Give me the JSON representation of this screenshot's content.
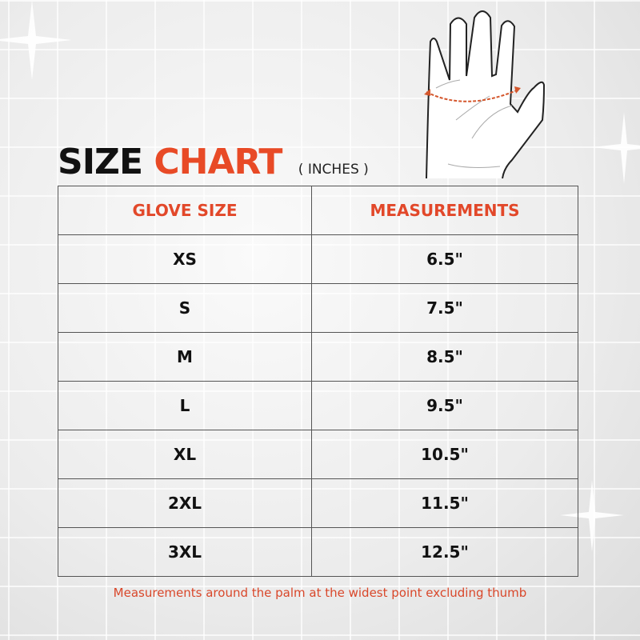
{
  "title": {
    "word1": "SIZE",
    "word2": "CHART",
    "unit": "( INCHES )"
  },
  "table": {
    "headers": [
      "GLOVE SIZE",
      "MEASUREMENTS"
    ],
    "rows": [
      [
        "XS",
        "6.5\""
      ],
      [
        "S",
        "7.5\""
      ],
      [
        "M",
        "8.5\""
      ],
      [
        "L",
        "9.5\""
      ],
      [
        "XL",
        "10.5\""
      ],
      [
        "2XL",
        "11.5\""
      ],
      [
        "3XL",
        "12.5\""
      ]
    ]
  },
  "note": "Measurements around the palm at the widest point excluding thumb",
  "colors": {
    "accent": "#e84a26",
    "text": "#111111"
  },
  "icons": [
    "hand-measure-icon",
    "sparkle-icon"
  ]
}
